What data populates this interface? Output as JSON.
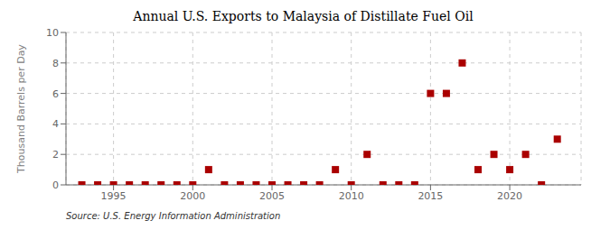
{
  "chart_data": {
    "type": "scatter",
    "title": "Annual U.S. Exports to Malaysia of Distillate Fuel Oil",
    "ylabel": "Thousand Barrels per Day",
    "annotations": [
      "Source: U.S. Energy Information Administration"
    ],
    "x": [
      1993,
      1994,
      1995,
      1996,
      1997,
      1998,
      1999,
      2000,
      2001,
      2002,
      2003,
      2004,
      2005,
      2006,
      2007,
      2008,
      2009,
      2010,
      2011,
      2012,
      2013,
      2014,
      2015,
      2016,
      2017,
      2018,
      2019,
      2020,
      2021,
      2022,
      2023
    ],
    "values": [
      0,
      0,
      0,
      0,
      0,
      0,
      0,
      0,
      1,
      0,
      0,
      0,
      0,
      0,
      0,
      0,
      1,
      0,
      2,
      0,
      0,
      0,
      6,
      6,
      8,
      1,
      2,
      1,
      2,
      0,
      3
    ],
    "color": "#aa0000",
    "marker": "square",
    "xlim": [
      1992,
      2024.5
    ],
    "xticks": [
      1995,
      2000,
      2005,
      2010,
      2015,
      2020
    ],
    "ylim": [
      0,
      10
    ],
    "yticks": [
      0,
      2,
      4,
      6,
      8,
      10
    ],
    "grid": true
  }
}
